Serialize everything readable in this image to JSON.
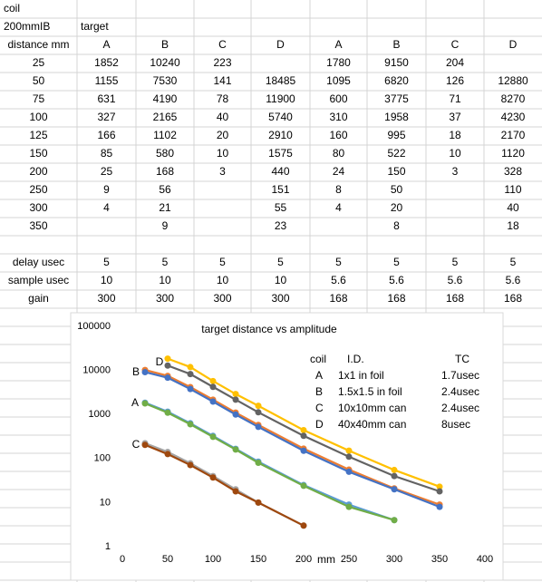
{
  "table": {
    "rows": [
      [
        "coil"
      ],
      [
        "200mmIB",
        "target"
      ],
      [
        "distance mm",
        "A",
        "B",
        "C",
        "D",
        "A",
        "B",
        "C",
        "D"
      ],
      [
        "25",
        "1852",
        "10240",
        "223",
        null,
        "1780",
        "9150",
        "204",
        null
      ],
      [
        "50",
        "1155",
        "7530",
        "141",
        "18485",
        "1095",
        "6820",
        "126",
        "12880"
      ],
      [
        "75",
        "631",
        "4190",
        "78",
        "11900",
        "600",
        "3775",
        "71",
        "8270"
      ],
      [
        "100",
        "327",
        "2165",
        "40",
        "5740",
        "310",
        "1958",
        "37",
        "4230"
      ],
      [
        "125",
        "166",
        "1102",
        "20",
        "2910",
        "160",
        "995",
        "18",
        "2170"
      ],
      [
        "150",
        "85",
        "580",
        "10",
        "1575",
        "80",
        "522",
        "10",
        "1120"
      ],
      [
        "200",
        "25",
        "168",
        "3",
        "440",
        "24",
        "150",
        "3",
        "328"
      ],
      [
        "250",
        "9",
        "56",
        null,
        "151",
        "8",
        "50",
        null,
        "110"
      ],
      [
        "300",
        "4",
        "21",
        null,
        "55",
        "4",
        "20",
        null,
        "40"
      ],
      [
        "350",
        null,
        "9",
        null,
        "23",
        null,
        "8",
        null,
        "18"
      ],
      [
        "delay usec",
        "5",
        "5",
        "5",
        "5",
        "5",
        "5",
        "5",
        "5"
      ],
      [
        "sample usec",
        "10",
        "10",
        "10",
        "10",
        "5.6",
        "5.6",
        "5.6",
        "5.6"
      ],
      [
        "gain",
        "300",
        "300",
        "300",
        "300",
        "168",
        "168",
        "168",
        "168"
      ]
    ]
  },
  "chart_data": {
    "type": "line",
    "title": "target distance vs amplitude",
    "x_label": "mm",
    "x": [
      25,
      50,
      75,
      100,
      125,
      150,
      200,
      250,
      300,
      350
    ],
    "xlim": [
      0,
      400
    ],
    "xticks": [
      0,
      50,
      100,
      150,
      200,
      250,
      300,
      350,
      400
    ],
    "ylim": [
      1,
      100000
    ],
    "yticks": [
      1,
      10,
      100,
      1000,
      10000,
      100000
    ],
    "y_log": true,
    "series": [
      {
        "color": "#5B9BD5",
        "values": [
          1852,
          1155,
          631,
          327,
          166,
          85,
          25,
          9,
          4,
          null
        ]
      },
      {
        "color": "#ED7D31",
        "values": [
          10240,
          7530,
          4190,
          2165,
          1102,
          580,
          168,
          56,
          21,
          9
        ]
      },
      {
        "color": "#A5A5A5",
        "values": [
          223,
          141,
          78,
          40,
          20,
          10,
          3,
          null,
          null,
          null
        ]
      },
      {
        "color": "#FFC000",
        "values": [
          null,
          18485,
          11900,
          5740,
          2910,
          1575,
          440,
          151,
          55,
          23
        ]
      },
      {
        "color": "#70AD47",
        "values": [
          1780,
          1095,
          600,
          310,
          160,
          80,
          24,
          8,
          4,
          null
        ]
      },
      {
        "color": "#4472C4",
        "values": [
          9150,
          6820,
          3775,
          1958,
          995,
          522,
          150,
          50,
          20,
          8
        ]
      },
      {
        "color": "#9E480E",
        "values": [
          204,
          126,
          71,
          37,
          18,
          10,
          3,
          null,
          null,
          null
        ]
      },
      {
        "color": "#636363",
        "values": [
          null,
          12880,
          8270,
          4230,
          2170,
          1120,
          328,
          110,
          40,
          18
        ]
      }
    ],
    "annotations": [
      "D",
      "B",
      "A",
      "C"
    ],
    "info_box": {
      "header": [
        "coil",
        "I.D.",
        "TC"
      ],
      "rows": [
        [
          "A",
          "1x1 in foil",
          "1.7usec"
        ],
        [
          "B",
          "1.5x1.5 in foil",
          "2.4usec"
        ],
        [
          "C",
          "10x10mm can",
          "2.4usec"
        ],
        [
          "D",
          "40x40mm can",
          "8usec"
        ]
      ]
    }
  }
}
